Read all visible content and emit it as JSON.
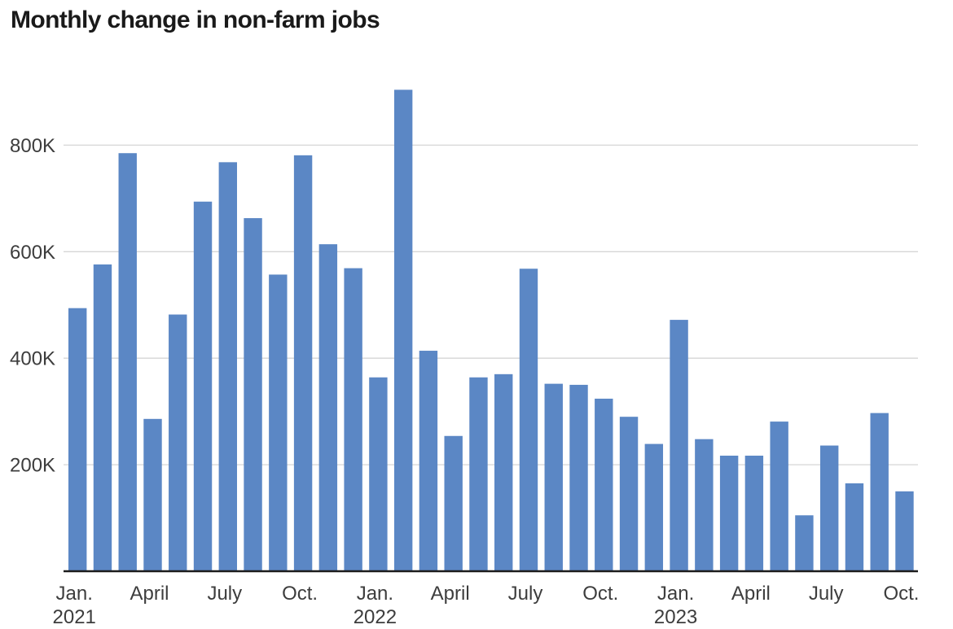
{
  "page": {
    "title": "Monthly change in non-farm jobs"
  },
  "chart_data": {
    "type": "bar",
    "title": "Monthly change in non-farm jobs",
    "xlabel": "",
    "ylabel": "",
    "values_unit": "jobs",
    "grid": "horizontal",
    "legend": "none",
    "ylim": [
      0,
      920000
    ],
    "categories": [
      "Jan. 2021",
      "Feb. 2021",
      "March 2021",
      "April 2021",
      "May 2021",
      "June 2021",
      "July 2021",
      "Aug. 2021",
      "Sep. 2021",
      "Oct. 2021",
      "Nov. 2021",
      "Dec. 2021",
      "Jan. 2022",
      "Feb. 2022",
      "March 2022",
      "April 2022",
      "May 2022",
      "June 2022",
      "July 2022",
      "Aug. 2022",
      "Sep. 2022",
      "Oct. 2022",
      "Nov. 2022",
      "Dec. 2022",
      "Jan. 2023",
      "Feb. 2023",
      "March 2023",
      "April 2023",
      "May 2023",
      "June 2023",
      "July 2023",
      "Aug. 2023",
      "Sep. 2023",
      "Oct. 2023"
    ],
    "values": [
      494000,
      576000,
      785000,
      286000,
      482000,
      694000,
      768000,
      663000,
      557000,
      781000,
      614000,
      569000,
      364000,
      904000,
      414000,
      254000,
      364000,
      370000,
      568000,
      352000,
      350000,
      324000,
      290000,
      239000,
      472000,
      248000,
      217000,
      217000,
      281000,
      105000,
      236000,
      165000,
      297000,
      150000
    ],
    "y_ticks": [
      {
        "value": 200000,
        "label": "200K"
      },
      {
        "value": 400000,
        "label": "400K"
      },
      {
        "value": 600000,
        "label": "600K"
      },
      {
        "value": 800000,
        "label": "800K"
      }
    ],
    "x_ticks": [
      {
        "index": 0,
        "label": "Jan.",
        "year": "2021"
      },
      {
        "index": 3,
        "label": "April"
      },
      {
        "index": 6,
        "label": "July"
      },
      {
        "index": 9,
        "label": "Oct."
      },
      {
        "index": 12,
        "label": "Jan.",
        "year": "2022"
      },
      {
        "index": 15,
        "label": "April"
      },
      {
        "index": 18,
        "label": "July"
      },
      {
        "index": 21,
        "label": "Oct."
      },
      {
        "index": 24,
        "label": "Jan.",
        "year": "2023"
      },
      {
        "index": 27,
        "label": "April"
      },
      {
        "index": 30,
        "label": "July"
      },
      {
        "index": 33,
        "label": "Oct."
      }
    ],
    "colors": {
      "bar": "#5b87c5",
      "gridline": "#d6d6d6",
      "axis_line": "#1c1c1c",
      "title_text": "#1a1a1a",
      "tick_text": "#3d3d3d",
      "background": "#ffffff"
    }
  }
}
